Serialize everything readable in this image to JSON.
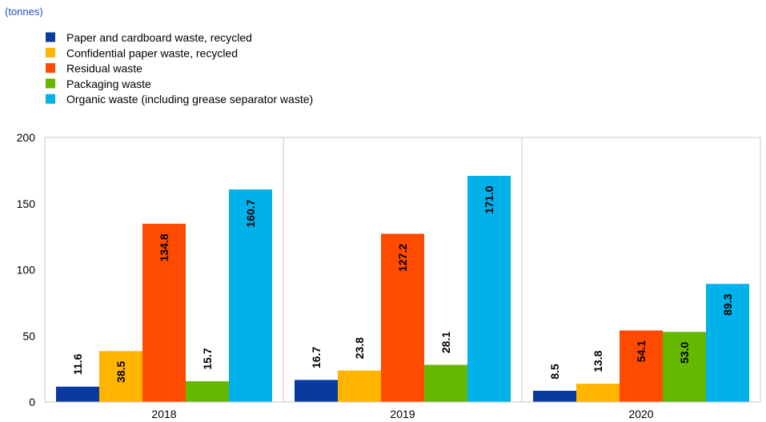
{
  "chart_data": {
    "type": "bar",
    "unit_label": "(tonnes)",
    "title": "",
    "xlabel": "",
    "ylabel": "",
    "categories": [
      "2018",
      "2019",
      "2020"
    ],
    "ylim": [
      0,
      200
    ],
    "yticks": [
      0,
      50,
      100,
      150,
      200
    ],
    "grid": "vertical category separators",
    "legend_position": "top-left",
    "series": [
      {
        "name": "Paper and cardboard waste, recycled",
        "color": "#0b3a9e",
        "values": [
          11.6,
          16.7,
          8.5
        ]
      },
      {
        "name": "Confidential paper waste, recycled",
        "color": "#ffb400",
        "values": [
          38.5,
          23.8,
          13.8
        ]
      },
      {
        "name": "Residual waste",
        "color": "#ff4b00",
        "values": [
          134.8,
          127.2,
          54.1
        ]
      },
      {
        "name": "Packaging waste",
        "color": "#65b800",
        "values": [
          15.7,
          28.1,
          53.0
        ]
      },
      {
        "name": "Organic waste (including grease separator waste)",
        "color": "#00b1ea",
        "values": [
          160.7,
          171.0,
          89.3
        ]
      }
    ],
    "data_label_format": "one-decimal"
  }
}
